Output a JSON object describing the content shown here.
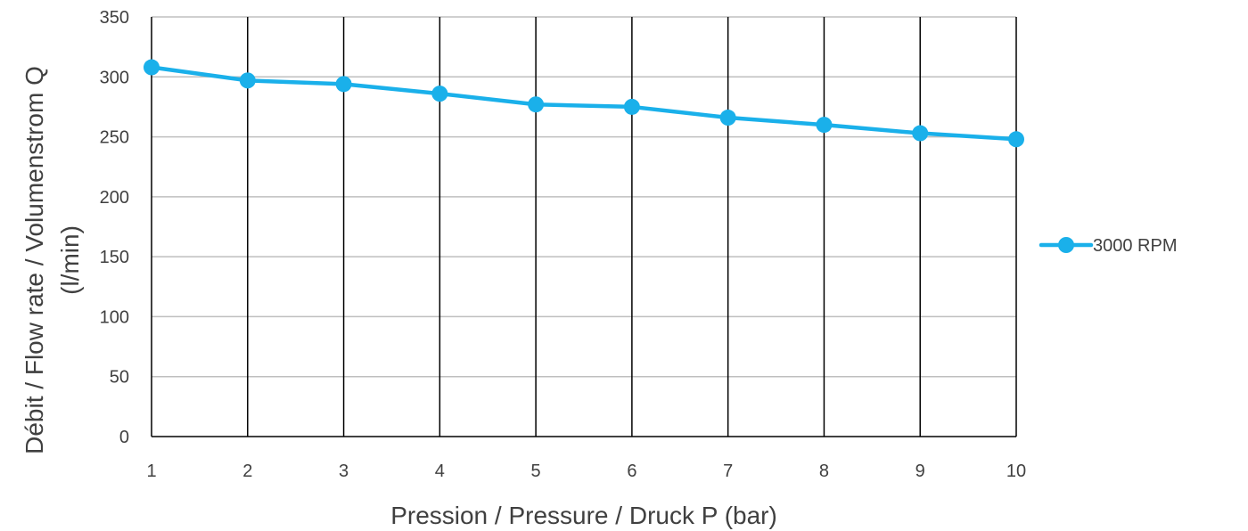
{
  "chart_data": {
    "type": "line",
    "title": "",
    "xlabel": "Pression / Pressure / Druck P (bar)",
    "ylabel_lines": [
      "Débit / Flow rate / Volumenstrom Q",
      "(l/min)"
    ],
    "x": [
      1,
      2,
      3,
      4,
      5,
      6,
      7,
      8,
      9,
      10
    ],
    "xticks": [
      "1",
      "2",
      "3",
      "4",
      "5",
      "6",
      "7",
      "8",
      "9",
      "10"
    ],
    "yticks": [
      "0",
      "50",
      "100",
      "150",
      "200",
      "250",
      "300",
      "350"
    ],
    "ylim": [
      0,
      350
    ],
    "grid": "horizontal light gray, vertical black",
    "legend_position": "right",
    "series": [
      {
        "name": "3000 RPM",
        "color": "#1ab0ea",
        "values": [
          308,
          297,
          294,
          286,
          277,
          275,
          266,
          260,
          253,
          248
        ]
      }
    ]
  }
}
